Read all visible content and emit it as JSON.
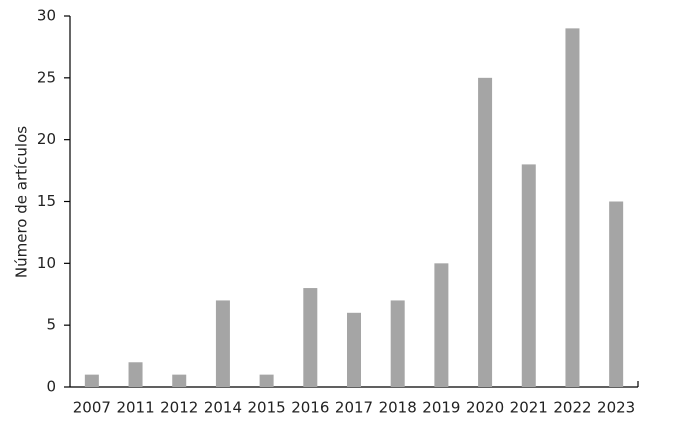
{
  "chart_data": {
    "type": "bar",
    "y_label": "Número de artículos",
    "categories": [
      "2007",
      "2011",
      "2012",
      "2014",
      "2015",
      "2016",
      "2017",
      "2018",
      "2019",
      "2020",
      "2021",
      "2022",
      "2023"
    ],
    "values": [
      1,
      2,
      1,
      7,
      1,
      8,
      6,
      7,
      10,
      25,
      18,
      29,
      15
    ],
    "color": "#a5a5a5",
    "ylim": [
      0,
      30
    ],
    "yticks": [
      0,
      5,
      10,
      15,
      20,
      25,
      30
    ],
    "grid": false
  }
}
